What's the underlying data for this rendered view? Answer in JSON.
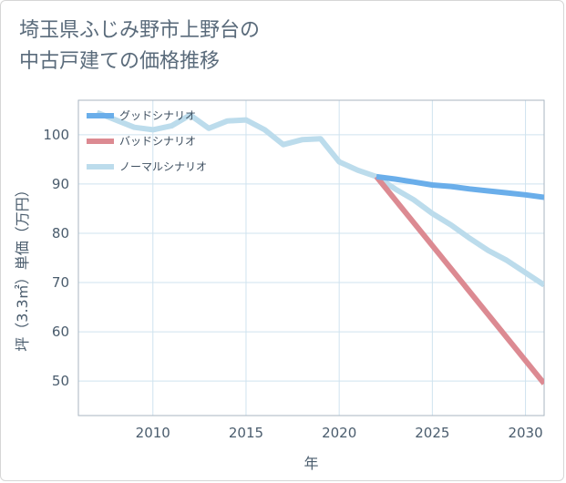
{
  "title_line1": "埼玉県ふじみ野市上野台の",
  "title_line2": "中古戸建ての価格推移",
  "chart_data": {
    "type": "line",
    "xlabel": "年",
    "ylabel": "坪（3.3㎡）単価（万円）",
    "xlim": [
      2006,
      2031
    ],
    "ylim": [
      43,
      107
    ],
    "xticks": [
      2010,
      2015,
      2020,
      2025,
      2030
    ],
    "yticks": [
      50,
      60,
      70,
      80,
      90,
      100
    ],
    "grid": true,
    "legend_position": "top-left",
    "series": [
      {
        "name": "グッドシナリオ",
        "color": "#6aaeea",
        "x": [
          2022,
          2023,
          2024,
          2025,
          2026,
          2027,
          2028,
          2029,
          2030,
          2031
        ],
        "y": [
          91.5,
          91.0,
          90.4,
          89.8,
          89.5,
          89.0,
          88.6,
          88.2,
          87.8,
          87.3
        ]
      },
      {
        "name": "バッドシナリオ",
        "color": "#dc8a92",
        "x": [
          2022,
          2031
        ],
        "y": [
          91.5,
          49.5
        ]
      },
      {
        "name": "ノーマルシナリオ",
        "color": "#bcdcec",
        "x": [
          2007,
          2008,
          2009,
          2010,
          2011,
          2012,
          2013,
          2014,
          2015,
          2016,
          2017,
          2018,
          2019,
          2020,
          2021,
          2022,
          2023,
          2024,
          2025,
          2026,
          2027,
          2028,
          2029,
          2030,
          2031
        ],
        "y": [
          104.5,
          103.0,
          101.5,
          101.0,
          101.8,
          104.0,
          101.3,
          102.8,
          103.0,
          101.0,
          98.0,
          99.0,
          99.2,
          94.5,
          92.8,
          91.5,
          89.0,
          86.8,
          84.0,
          81.7,
          79.0,
          76.5,
          74.5,
          72.0,
          69.5
        ]
      }
    ]
  }
}
